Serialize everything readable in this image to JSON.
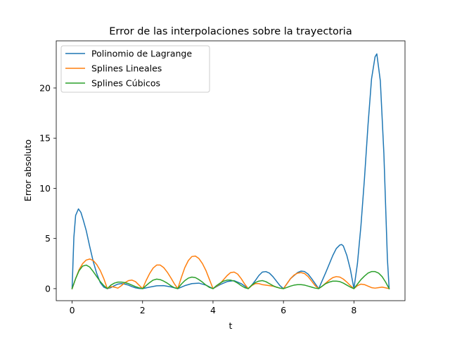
{
  "chart_data": {
    "type": "line",
    "title": "Error de las interpolaciones sobre la trayectoria",
    "xlabel": "t",
    "ylabel": "Error absoluto",
    "xlim": [
      -0.45,
      9.45
    ],
    "ylim": [
      -1.2,
      24.7
    ],
    "xticks": [
      0,
      2,
      4,
      6,
      8
    ],
    "yticks": [
      0,
      5,
      10,
      15,
      20
    ],
    "grid": false,
    "legend_position": "top-left",
    "series": [
      {
        "name": "Polinomio de Lagrange",
        "color": "#1f77b4",
        "x": [
          0,
          0.05,
          0.1,
          0.18,
          0.25,
          0.32,
          0.4,
          0.5,
          0.6,
          0.7,
          0.8,
          0.9,
          1.0,
          1.1,
          1.2,
          1.3,
          1.4,
          1.5,
          1.6,
          1.7,
          1.8,
          1.9,
          2.0,
          2.2,
          2.4,
          2.6,
          2.8,
          3.0,
          3.2,
          3.4,
          3.6,
          3.8,
          4.0,
          4.2,
          4.4,
          4.6,
          4.8,
          5.0,
          5.1,
          5.2,
          5.3,
          5.4,
          5.5,
          5.6,
          5.7,
          5.8,
          5.9,
          6.0,
          6.2,
          6.4,
          6.5,
          6.6,
          6.7,
          6.8,
          7.0,
          7.2,
          7.4,
          7.5,
          7.6,
          7.65,
          7.7,
          7.8,
          7.9,
          8.0,
          8.1,
          8.2,
          8.3,
          8.4,
          8.5,
          8.6,
          8.65,
          8.75,
          8.85,
          8.95,
          9.0
        ],
        "y": [
          0,
          5.1,
          7.3,
          7.95,
          7.6,
          6.8,
          5.8,
          4.2,
          2.7,
          1.5,
          0.6,
          0.15,
          0,
          0.1,
          0.3,
          0.45,
          0.5,
          0.45,
          0.35,
          0.2,
          0.08,
          0.02,
          0,
          0.15,
          0.28,
          0.3,
          0.18,
          0,
          0.3,
          0.5,
          0.55,
          0.35,
          0,
          0.4,
          0.7,
          0.8,
          0.5,
          0,
          0.35,
          0.8,
          1.3,
          1.65,
          1.7,
          1.55,
          1.2,
          0.75,
          0.3,
          0,
          1.0,
          1.6,
          1.75,
          1.7,
          1.45,
          1.0,
          0,
          1.6,
          3.3,
          4.0,
          4.35,
          4.4,
          4.25,
          3.3,
          1.9,
          0,
          2.5,
          6.3,
          11.0,
          16.3,
          20.9,
          23.1,
          23.4,
          20.7,
          13.5,
          3.0,
          0
        ]
      },
      {
        "name": "Splines Lineales",
        "color": "#ff7f0e",
        "x": [
          0,
          0.1,
          0.2,
          0.3,
          0.4,
          0.5,
          0.6,
          0.7,
          0.8,
          0.9,
          1.0,
          1.1,
          1.2,
          1.3,
          1.4,
          1.5,
          1.6,
          1.7,
          1.8,
          1.9,
          2.0,
          2.1,
          2.2,
          2.3,
          2.4,
          2.5,
          2.6,
          2.7,
          2.8,
          2.9,
          3.0,
          3.1,
          3.2,
          3.3,
          3.4,
          3.5,
          3.6,
          3.7,
          3.8,
          3.9,
          4.0,
          4.1,
          4.2,
          4.3,
          4.4,
          4.5,
          4.6,
          4.7,
          4.8,
          4.9,
          5.0,
          5.1,
          5.2,
          5.3,
          5.4,
          5.5,
          5.6,
          5.7,
          5.8,
          5.9,
          6.0,
          6.1,
          6.2,
          6.3,
          6.4,
          6.5,
          6.6,
          6.7,
          6.8,
          6.9,
          7.0,
          7.1,
          7.2,
          7.3,
          7.4,
          7.5,
          7.6,
          7.7,
          7.8,
          7.9,
          8.0,
          8.1,
          8.2,
          8.3,
          8.4,
          8.5,
          8.6,
          8.7,
          8.8,
          8.9,
          9.0
        ],
        "y": [
          0,
          1.0,
          1.9,
          2.5,
          2.85,
          2.95,
          2.8,
          2.4,
          1.8,
          1.0,
          0,
          0.2,
          0.15,
          0.05,
          0.3,
          0.6,
          0.8,
          0.85,
          0.7,
          0.35,
          0,
          0.8,
          1.5,
          2.05,
          2.35,
          2.35,
          2.1,
          1.65,
          1.1,
          0.5,
          0,
          1.1,
          2.1,
          2.8,
          3.2,
          3.25,
          3.0,
          2.5,
          1.8,
          0.9,
          0,
          0.25,
          0.5,
          0.9,
          1.3,
          1.6,
          1.65,
          1.45,
          1.0,
          0.45,
          0,
          0.3,
          0.5,
          0.5,
          0.4,
          0.35,
          0.3,
          0.25,
          0.15,
          0.05,
          0,
          0.5,
          1.0,
          1.35,
          1.55,
          1.6,
          1.5,
          1.2,
          0.75,
          0.3,
          0,
          0.25,
          0.55,
          0.85,
          1.1,
          1.2,
          1.15,
          0.95,
          0.65,
          0.3,
          0,
          0.3,
          0.45,
          0.4,
          0.25,
          0.1,
          0.05,
          0.1,
          0.15,
          0.08,
          0
        ]
      },
      {
        "name": "Splines Cúbicos",
        "color": "#2ca02c",
        "x": [
          0,
          0.1,
          0.2,
          0.3,
          0.4,
          0.5,
          0.6,
          0.7,
          0.8,
          0.9,
          1.0,
          1.1,
          1.2,
          1.3,
          1.4,
          1.5,
          1.6,
          1.7,
          1.8,
          1.9,
          2.0,
          2.1,
          2.2,
          2.3,
          2.4,
          2.5,
          2.6,
          2.7,
          2.8,
          2.9,
          3.0,
          3.1,
          3.2,
          3.3,
          3.4,
          3.5,
          3.6,
          3.7,
          3.8,
          3.9,
          4.0,
          4.1,
          4.2,
          4.3,
          4.4,
          4.5,
          4.6,
          4.7,
          4.8,
          4.9,
          5.0,
          5.1,
          5.2,
          5.3,
          5.4,
          5.5,
          5.6,
          5.7,
          5.8,
          5.9,
          6.0,
          6.1,
          6.2,
          6.3,
          6.4,
          6.5,
          6.6,
          6.7,
          6.8,
          6.9,
          7.0,
          7.1,
          7.2,
          7.3,
          7.4,
          7.5,
          7.6,
          7.7,
          7.8,
          7.9,
          8.0,
          8.1,
          8.2,
          8.3,
          8.4,
          8.5,
          8.6,
          8.7,
          8.8,
          8.9,
          9.0
        ],
        "y": [
          0,
          1.0,
          1.8,
          2.25,
          2.35,
          2.15,
          1.7,
          1.2,
          0.7,
          0.3,
          0,
          0.35,
          0.55,
          0.65,
          0.65,
          0.6,
          0.5,
          0.35,
          0.2,
          0.08,
          0,
          0.3,
          0.6,
          0.85,
          0.95,
          0.9,
          0.75,
          0.55,
          0.3,
          0.1,
          0,
          0.45,
          0.8,
          1.05,
          1.15,
          1.1,
          0.9,
          0.65,
          0.35,
          0.12,
          0,
          0.3,
          0.55,
          0.75,
          0.85,
          0.85,
          0.75,
          0.55,
          0.3,
          0.1,
          0,
          0.35,
          0.6,
          0.75,
          0.8,
          0.7,
          0.5,
          0.3,
          0.15,
          0.05,
          0,
          0.12,
          0.25,
          0.35,
          0.4,
          0.4,
          0.35,
          0.25,
          0.15,
          0.05,
          0,
          0.25,
          0.5,
          0.65,
          0.75,
          0.75,
          0.7,
          0.55,
          0.35,
          0.15,
          0,
          0.45,
          0.9,
          1.25,
          1.55,
          1.7,
          1.7,
          1.55,
          1.2,
          0.65,
          0
        ]
      }
    ]
  }
}
